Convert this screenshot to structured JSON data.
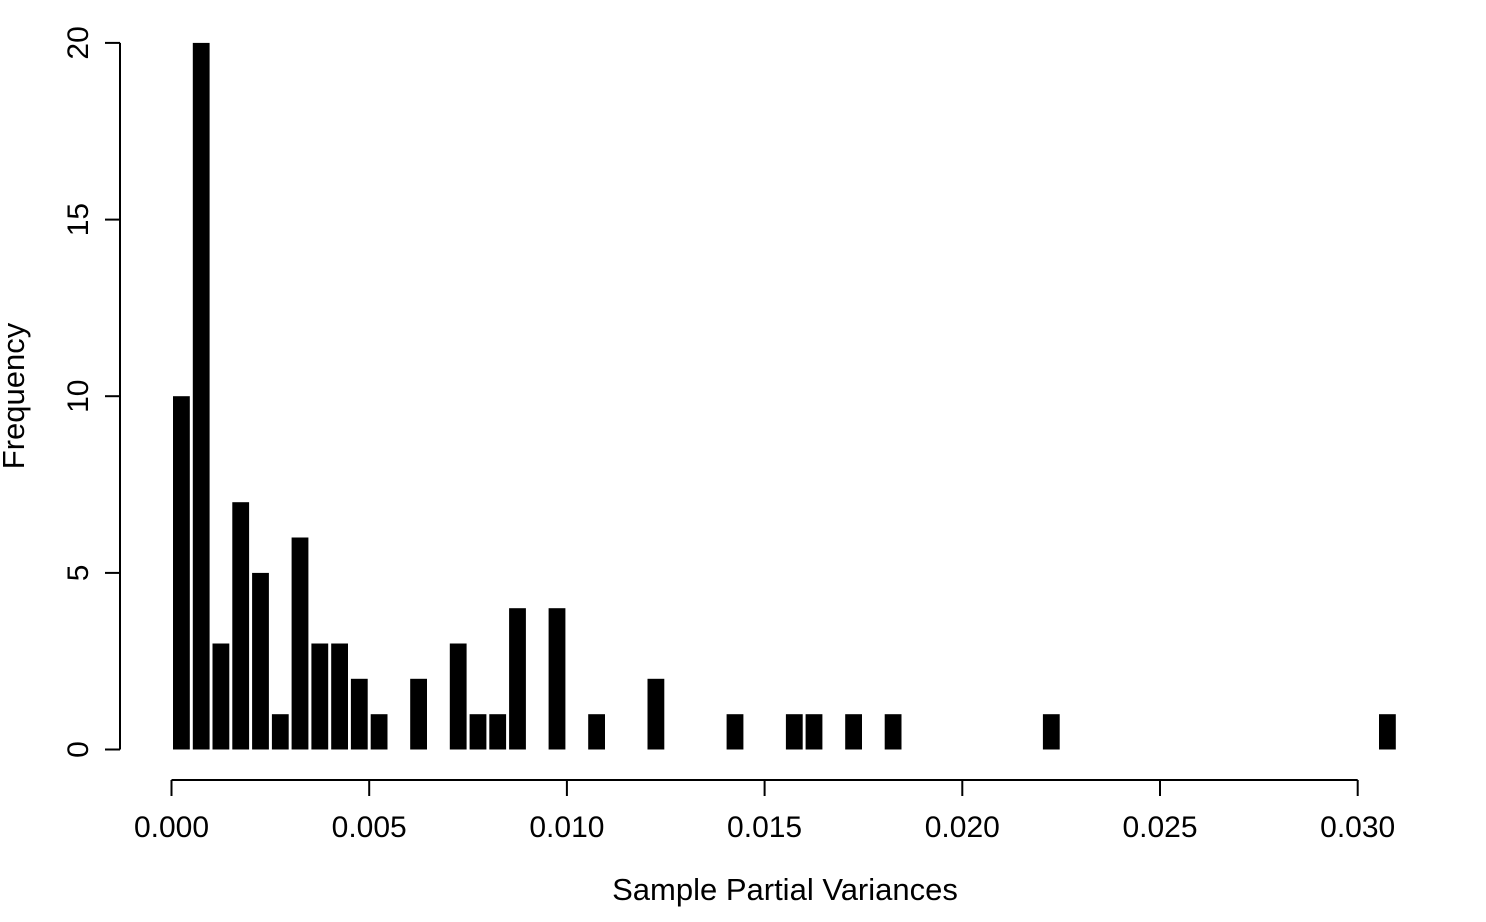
{
  "page": {
    "background": "#ffffff"
  },
  "chart_data": {
    "type": "bar",
    "subtype": "histogram",
    "title": "",
    "xlabel": "Sample Partial Variances",
    "ylabel": "Frequency",
    "bin_start": 0,
    "bin_width": 0.0005,
    "counts": [
      10,
      20,
      3,
      7,
      5,
      1,
      6,
      3,
      3,
      2,
      1,
      0,
      2,
      0,
      3,
      1,
      1,
      4,
      0,
      4,
      0,
      1,
      0,
      0,
      2,
      0,
      0,
      0,
      1,
      0,
      0,
      1,
      1,
      0,
      1,
      0,
      1,
      0,
      0,
      0,
      0,
      0,
      0,
      0,
      1,
      0,
      0,
      0,
      0,
      0,
      0,
      0,
      0,
      0,
      0,
      0,
      0,
      0,
      0,
      0,
      0,
      1
    ],
    "x_tick_values": [
      0,
      0.005,
      0.01,
      0.015,
      0.02,
      0.025,
      0.03
    ],
    "x_tick_labels": [
      "0.000",
      "0.005",
      "0.010",
      "0.015",
      "0.020",
      "0.025",
      "0.030"
    ],
    "y_tick_values": [
      0,
      5,
      10,
      15,
      20
    ],
    "y_tick_labels": [
      "0",
      "5",
      "10",
      "15",
      "20"
    ],
    "xlim": [
      0,
      0.031
    ],
    "ylim": [
      0,
      20
    ],
    "grid": false,
    "legend": "none",
    "bar_color": "#000000",
    "axis_color": "#000000"
  }
}
